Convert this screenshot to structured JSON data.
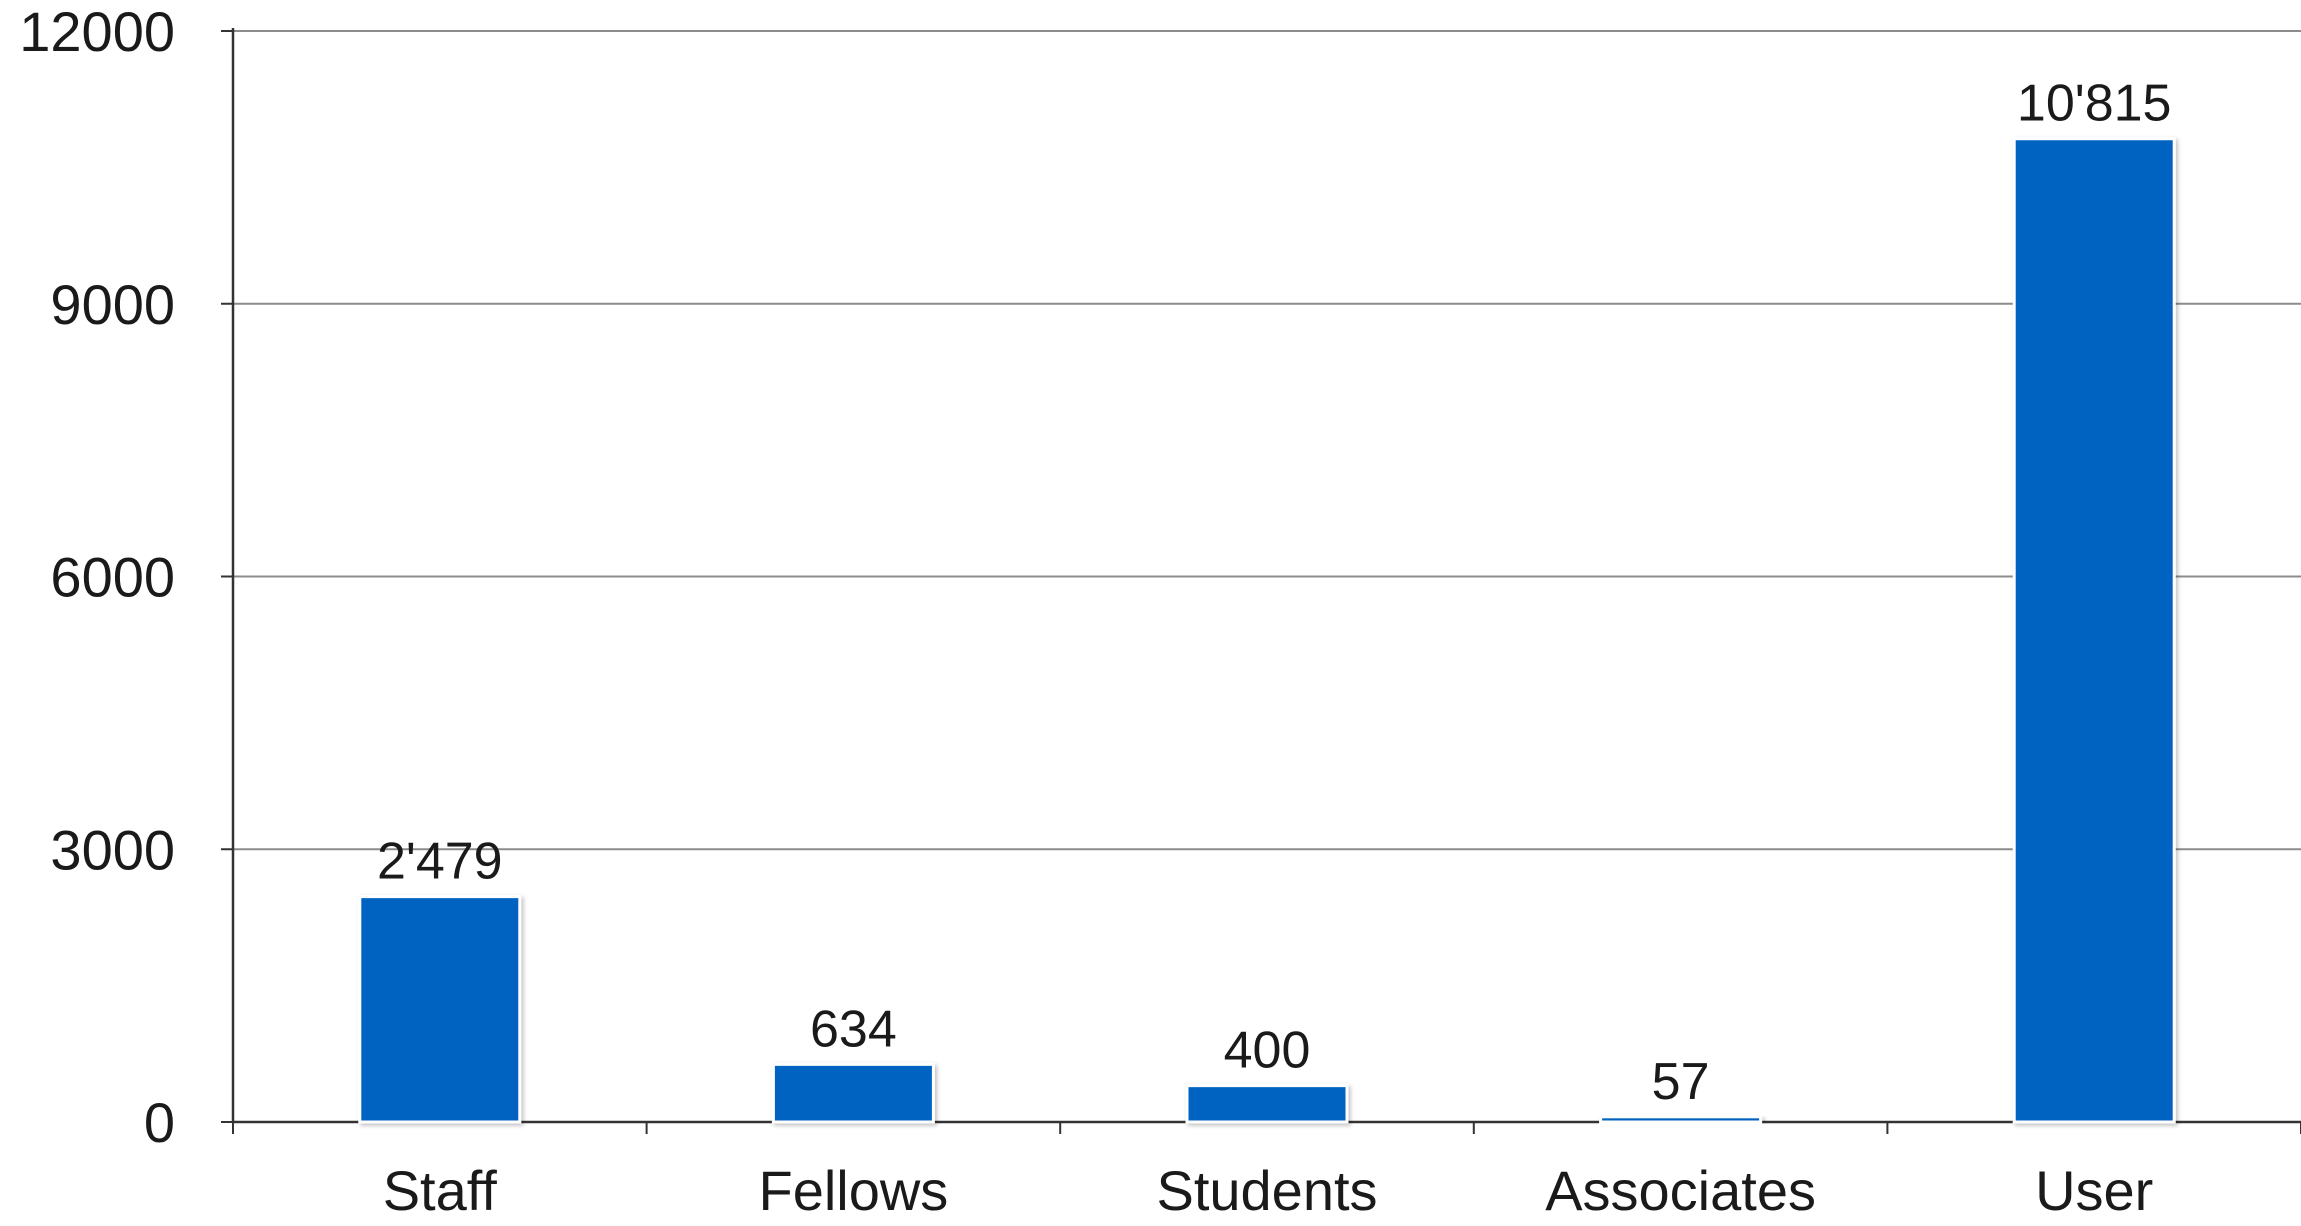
{
  "chart_data": {
    "type": "bar",
    "categories": [
      "Staff",
      "Fellows",
      "Students",
      "Associates",
      "User"
    ],
    "values": [
      2479,
      634,
      400,
      57,
      10815
    ],
    "data_labels": [
      "2'479",
      "634",
      "400",
      "57",
      "10'815"
    ],
    "yticks": [
      "0",
      "3000",
      "6000",
      "9000",
      "12000"
    ],
    "ylim": [
      0,
      12000
    ],
    "title": "",
    "xlabel": "",
    "ylabel": "",
    "grid": true,
    "colors": {
      "bar": "#0563c1",
      "grid": "#8c8c8c",
      "axis": "#333333",
      "text": "#1a1a1a"
    }
  }
}
